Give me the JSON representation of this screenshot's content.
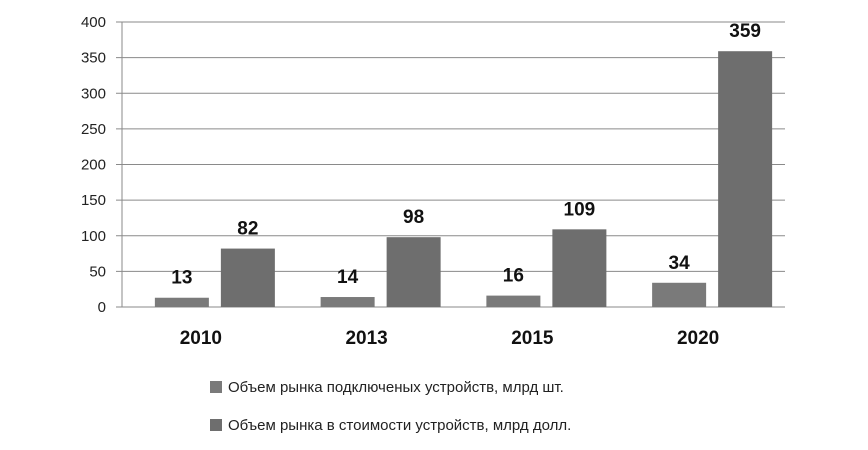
{
  "chart_data": {
    "type": "bar",
    "categories": [
      "2010",
      "2013",
      "2015",
      "2020"
    ],
    "series": [
      {
        "name": "Объем рынка подключеных устройств, млрд шт.",
        "values": [
          13,
          14,
          16,
          34
        ],
        "color": "#7a7a7a"
      },
      {
        "name": "Объем рынка в стоимости устройств, млрд долл.",
        "values": [
          82,
          98,
          109,
          359
        ],
        "color": "#6e6e6e"
      }
    ],
    "yticks": [
      "0",
      "50",
      "100",
      "150",
      "200",
      "250",
      "300",
      "350",
      "400"
    ],
    "ylim": [
      0,
      400
    ],
    "grid": true,
    "legend_position": "bottom"
  }
}
